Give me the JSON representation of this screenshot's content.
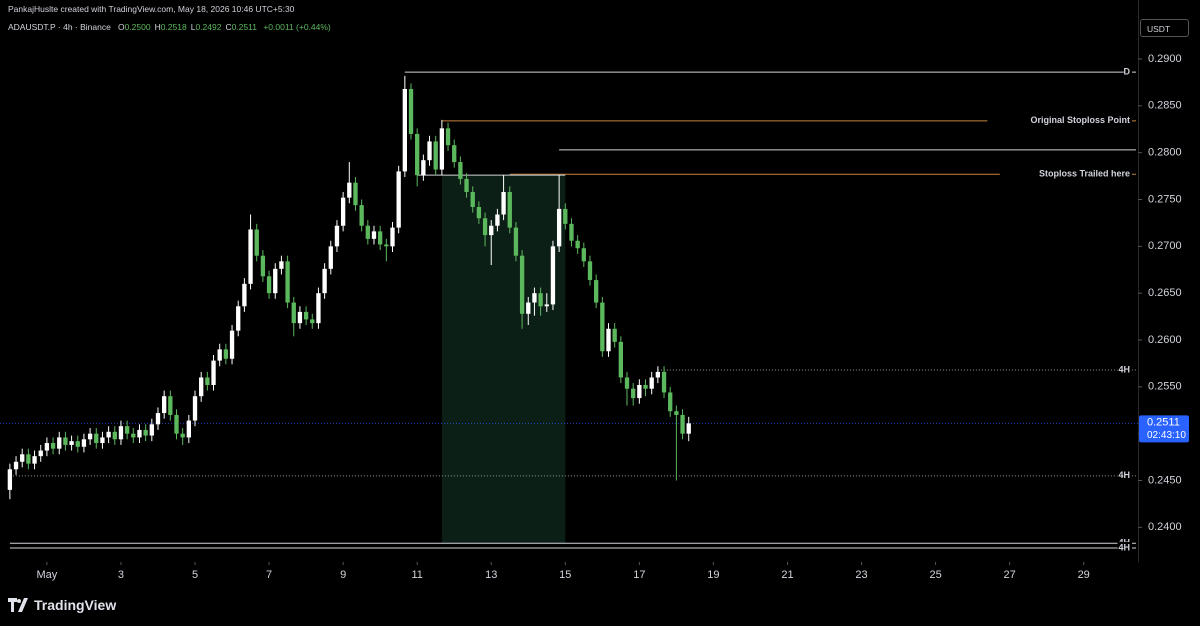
{
  "header": {
    "credit": "PankajHuslte created with TradingView.com, May 18, 2026 10:46 UTC+5:30",
    "symbol": "ADAUSDT.P · 4h · Binance",
    "ohlc": [
      {
        "key": "O",
        "text": "0.2500"
      },
      {
        "key": "H",
        "text": "0.2518"
      },
      {
        "key": "L",
        "text": "0.2492"
      },
      {
        "key": "C",
        "text": "0.2511"
      }
    ],
    "change": "+0.0011 (+0.44%)",
    "currency": "USDT",
    "brand": "TradingView"
  },
  "chart_data": {
    "type": "candlestick",
    "up_color": "#ffffff",
    "down_color": "#5cb85c",
    "grid": false,
    "xlim": [
      -1.6,
      182.8
    ],
    "xticks": [
      {
        "value": 6,
        "label": "May"
      },
      {
        "value": 18,
        "label": "3"
      },
      {
        "value": 30,
        "label": "5"
      },
      {
        "value": 42,
        "label": "7"
      },
      {
        "value": 54,
        "label": "9"
      },
      {
        "value": 66,
        "label": "11"
      },
      {
        "value": 78,
        "label": "13"
      },
      {
        "value": 90,
        "label": "15"
      },
      {
        "value": 102,
        "label": "17"
      },
      {
        "value": 114,
        "label": "19"
      },
      {
        "value": 126,
        "label": "21"
      },
      {
        "value": 138,
        "label": "23"
      },
      {
        "value": 150,
        "label": "25"
      },
      {
        "value": 162,
        "label": "27"
      },
      {
        "value": 174,
        "label": "29"
      }
    ],
    "ylim": [
      0.2363,
      0.2963
    ],
    "yticks": [
      {
        "value": 0.24,
        "label": "0.2400"
      },
      {
        "value": 0.245,
        "label": "0.2450"
      },
      {
        "value": 0.25,
        "label": "0.2500"
      },
      {
        "value": 0.255,
        "label": "0.2550"
      },
      {
        "value": 0.26,
        "label": "0.2600"
      },
      {
        "value": 0.265,
        "label": "0.2650"
      },
      {
        "value": 0.27,
        "label": "0.2700"
      },
      {
        "value": 0.275,
        "label": "0.2750"
      },
      {
        "value": 0.28,
        "label": "0.2800"
      },
      {
        "value": 0.285,
        "label": "0.2850"
      },
      {
        "value": 0.29,
        "label": "0.2900"
      }
    ],
    "open": [
      0.244,
      0.2462,
      0.247,
      0.2478,
      0.2468,
      0.2476,
      0.2482,
      0.249,
      0.2484,
      0.2496,
      0.2488,
      0.2492,
      0.2486,
      0.2494,
      0.25,
      0.249,
      0.2496,
      0.2502,
      0.2494,
      0.2508,
      0.25,
      0.2496,
      0.2504,
      0.2498,
      0.251,
      0.2522,
      0.254,
      0.252,
      0.25,
      0.2496,
      0.2514,
      0.254,
      0.256,
      0.2552,
      0.2578,
      0.259,
      0.258,
      0.261,
      0.2636,
      0.266,
      0.2718,
      0.269,
      0.2668,
      0.265,
      0.2676,
      0.2684,
      0.264,
      0.2618,
      0.263,
      0.2622,
      0.2618,
      0.265,
      0.2676,
      0.27,
      0.2722,
      0.2752,
      0.2768,
      0.2744,
      0.2722,
      0.2708,
      0.2716,
      0.2702,
      0.27,
      0.272,
      0.278,
      0.2868,
      0.282,
      0.2776,
      0.2792,
      0.2812,
      0.2782,
      0.2826,
      0.2808,
      0.279,
      0.2772,
      0.2758,
      0.2742,
      0.273,
      0.2712,
      0.2722,
      0.2734,
      0.2758,
      0.272,
      0.269,
      0.2628,
      0.264,
      0.265,
      0.2636,
      0.2638,
      0.27,
      0.274,
      0.2724,
      0.2706,
      0.2698,
      0.2684,
      0.2664,
      0.264,
      0.2588,
      0.2612,
      0.2598,
      0.256,
      0.2548,
      0.2538,
      0.2552,
      0.2548,
      0.256,
      0.2566,
      0.2544,
      0.2524,
      0.252,
      0.25
    ],
    "high": [
      0.2468,
      0.2476,
      0.2484,
      0.2484,
      0.2482,
      0.2488,
      0.2496,
      0.2496,
      0.2502,
      0.2502,
      0.2498,
      0.2498,
      0.25,
      0.2506,
      0.2506,
      0.2502,
      0.2508,
      0.2508,
      0.2514,
      0.2514,
      0.2506,
      0.251,
      0.251,
      0.2516,
      0.2528,
      0.2546,
      0.2546,
      0.2526,
      0.2506,
      0.252,
      0.2546,
      0.2566,
      0.2566,
      0.2584,
      0.2596,
      0.2596,
      0.2616,
      0.2642,
      0.2666,
      0.2734,
      0.2724,
      0.2696,
      0.2674,
      0.2682,
      0.269,
      0.269,
      0.2646,
      0.2636,
      0.2636,
      0.2628,
      0.2656,
      0.2682,
      0.2706,
      0.2728,
      0.2758,
      0.279,
      0.2774,
      0.275,
      0.2728,
      0.2722,
      0.2722,
      0.2708,
      0.2726,
      0.2786,
      0.2882,
      0.2874,
      0.2826,
      0.2798,
      0.2818,
      0.2818,
      0.2835,
      0.2832,
      0.2814,
      0.2796,
      0.2778,
      0.2764,
      0.2748,
      0.2736,
      0.2728,
      0.274,
      0.2776,
      0.2764,
      0.2726,
      0.2696,
      0.2646,
      0.2656,
      0.2656,
      0.265,
      0.2706,
      0.2776,
      0.2746,
      0.273,
      0.2712,
      0.2704,
      0.269,
      0.267,
      0.2646,
      0.2618,
      0.2618,
      0.2604,
      0.2566,
      0.2554,
      0.2558,
      0.2558,
      0.2566,
      0.2572,
      0.2572,
      0.255,
      0.253,
      0.2526,
      0.2518
    ],
    "low": [
      0.243,
      0.2456,
      0.2464,
      0.2462,
      0.2462,
      0.247,
      0.2476,
      0.2478,
      0.2478,
      0.2482,
      0.2482,
      0.248,
      0.248,
      0.2488,
      0.2484,
      0.2484,
      0.249,
      0.2488,
      0.2488,
      0.2494,
      0.249,
      0.249,
      0.2492,
      0.2492,
      0.2504,
      0.2516,
      0.2514,
      0.2494,
      0.2488,
      0.249,
      0.2508,
      0.2534,
      0.2546,
      0.2546,
      0.2572,
      0.2574,
      0.2574,
      0.2604,
      0.263,
      0.2654,
      0.2684,
      0.2662,
      0.2644,
      0.2644,
      0.267,
      0.2634,
      0.2604,
      0.2612,
      0.2616,
      0.2612,
      0.2612,
      0.2644,
      0.267,
      0.2694,
      0.2716,
      0.2746,
      0.2738,
      0.2716,
      0.2702,
      0.2702,
      0.2696,
      0.2684,
      0.2694,
      0.2714,
      0.2774,
      0.2814,
      0.2764,
      0.277,
      0.2786,
      0.2776,
      0.2776,
      0.2802,
      0.2784,
      0.2766,
      0.2752,
      0.2736,
      0.2724,
      0.27,
      0.268,
      0.2716,
      0.2728,
      0.2714,
      0.2684,
      0.2612,
      0.2616,
      0.2626,
      0.2626,
      0.263,
      0.2632,
      0.2694,
      0.2718,
      0.27,
      0.2692,
      0.2678,
      0.2658,
      0.2634,
      0.2582,
      0.2582,
      0.2592,
      0.2554,
      0.253,
      0.253,
      0.2532,
      0.254,
      0.2542,
      0.2554,
      0.2538,
      0.2518,
      0.245,
      0.2494,
      0.2492
    ],
    "close": [
      0.2462,
      0.247,
      0.2478,
      0.2468,
      0.2476,
      0.2482,
      0.249,
      0.2484,
      0.2496,
      0.2488,
      0.2492,
      0.2486,
      0.2494,
      0.25,
      0.249,
      0.2496,
      0.2502,
      0.2494,
      0.2508,
      0.25,
      0.2496,
      0.2504,
      0.2498,
      0.251,
      0.2522,
      0.254,
      0.252,
      0.25,
      0.2496,
      0.2514,
      0.254,
      0.256,
      0.2552,
      0.2578,
      0.259,
      0.258,
      0.261,
      0.2636,
      0.266,
      0.2718,
      0.269,
      0.2668,
      0.265,
      0.2676,
      0.2684,
      0.264,
      0.2618,
      0.263,
      0.2622,
      0.2618,
      0.265,
      0.2676,
      0.27,
      0.2722,
      0.2752,
      0.2768,
      0.2744,
      0.2722,
      0.2708,
      0.2716,
      0.2702,
      0.27,
      0.272,
      0.278,
      0.2868,
      0.282,
      0.2776,
      0.2792,
      0.2812,
      0.2782,
      0.2826,
      0.2808,
      0.279,
      0.2772,
      0.2758,
      0.2742,
      0.273,
      0.2712,
      0.2722,
      0.2734,
      0.2758,
      0.272,
      0.269,
      0.2628,
      0.264,
      0.265,
      0.2636,
      0.2638,
      0.27,
      0.274,
      0.2724,
      0.2706,
      0.2698,
      0.2684,
      0.2664,
      0.264,
      0.2588,
      0.2612,
      0.2598,
      0.256,
      0.2548,
      0.2538,
      0.2552,
      0.2548,
      0.256,
      0.2566,
      0.2544,
      0.2524,
      0.252,
      0.25,
      0.2511
    ],
    "zone": {
      "start": 70,
      "end": 90,
      "top": 0.2776,
      "bottom": 0.2383,
      "color": "#0c1f16"
    },
    "levels": [
      {
        "label": "D",
        "value": 0.2886,
        "start": 64,
        "color": "#d1d4dc",
        "style": "solid"
      },
      {
        "label": "Original Stoploss Point",
        "value": 0.2834,
        "start": 70,
        "color": "#c8843c",
        "style": "solid"
      },
      {
        "value": 0.2803,
        "start": 89,
        "color": "#d1d4dc",
        "style": "solid"
      },
      {
        "label": "Stoploss Trailed here",
        "value": 0.2777,
        "start": 81,
        "color": "#c8843c",
        "style": "solid"
      },
      {
        "value": 0.2776,
        "start": 66,
        "end": 90,
        "color": "#d1d4dc",
        "style": "solid"
      },
      {
        "label": "4H",
        "value": 0.2568,
        "start": 105,
        "color": "#9a9a9a",
        "style": "dotted"
      },
      {
        "label": "4H",
        "value": 0.2455,
        "start": 0,
        "color": "#9a9a9a",
        "style": "dotted"
      },
      {
        "label": "4H",
        "value": 0.2383,
        "start": 0,
        "color": "#d1d4dc",
        "style": "solid"
      },
      {
        "label": "4H",
        "value": 0.2378,
        "start": 0,
        "color": "#d1d4dc",
        "style": "solid"
      }
    ],
    "last_price": {
      "value": 0.2511,
      "label": "0.2511",
      "countdown": "02:43:10",
      "color": "#2962ff"
    }
  }
}
